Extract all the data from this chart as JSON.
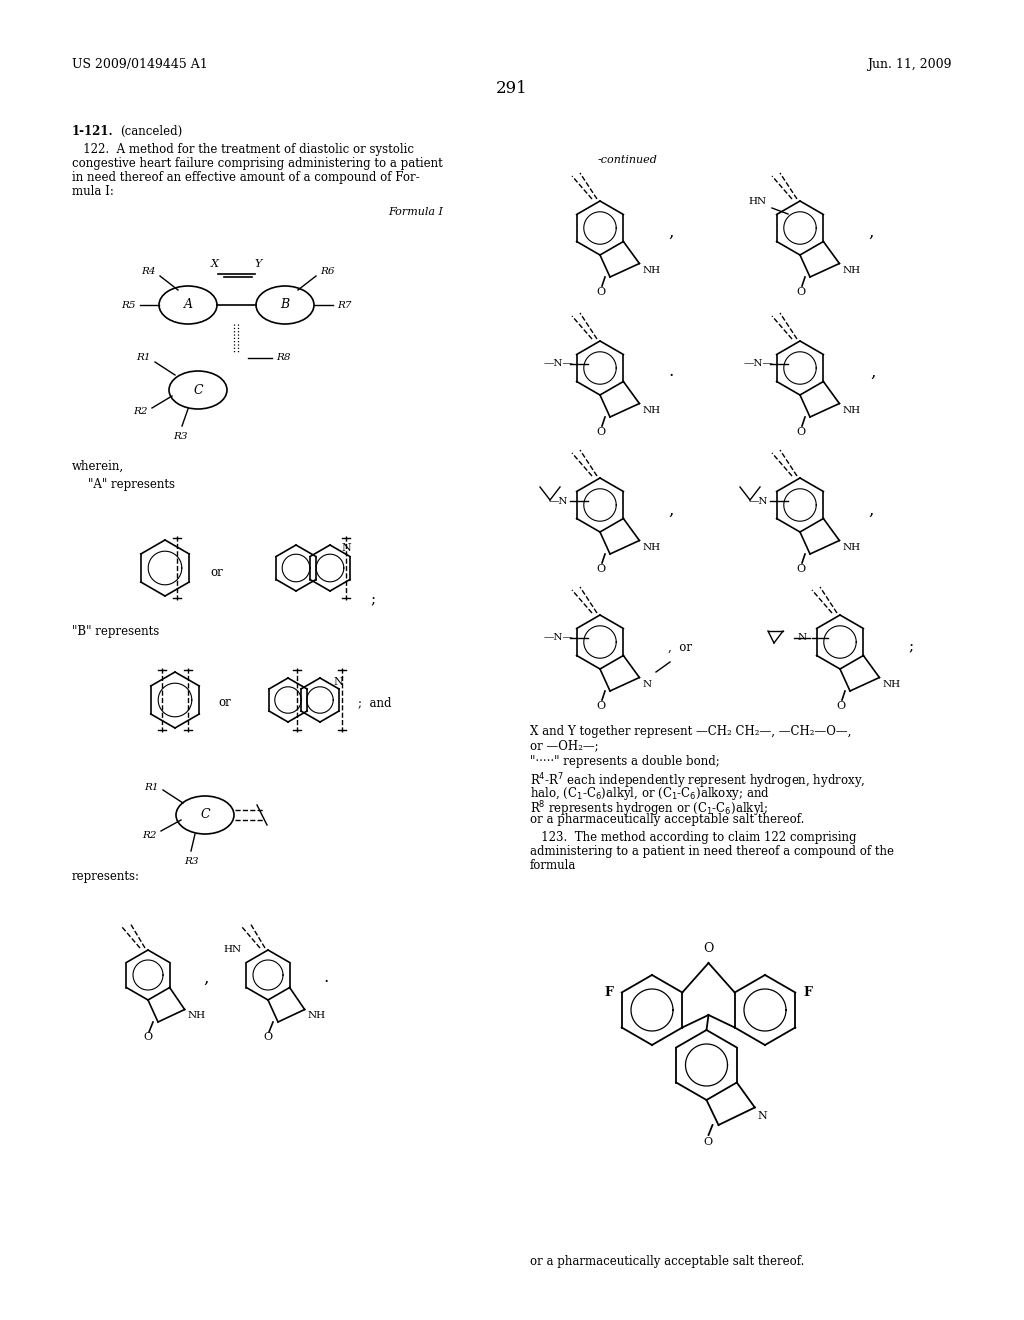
{
  "page_header_left": "US 2009/0149445 A1",
  "page_header_right": "Jun. 11, 2009",
  "page_number": "291",
  "background_color": "#ffffff",
  "text_color": "#000000",
  "figsize": [
    10.24,
    13.2
  ],
  "dpi": 100
}
